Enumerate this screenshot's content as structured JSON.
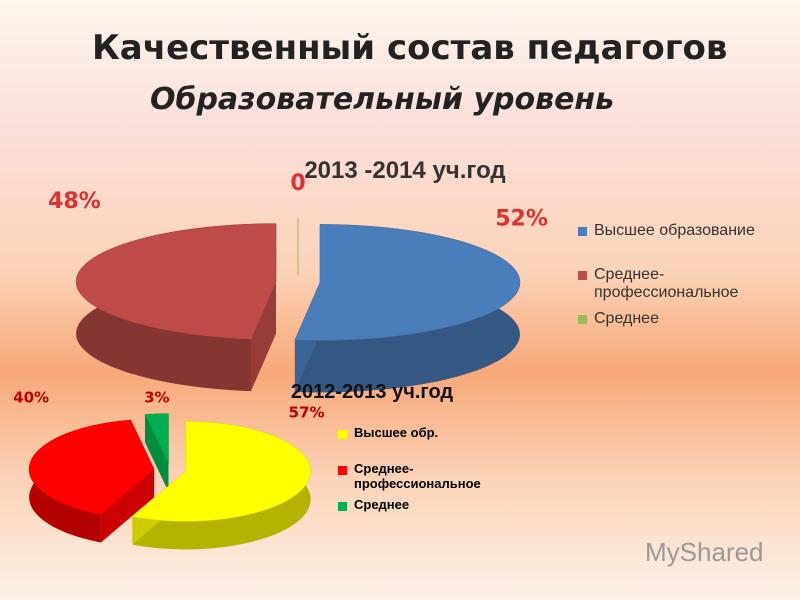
{
  "header": {
    "title": "Качественный состав педагогов",
    "subtitle": "Образовательный уровень"
  },
  "watermark": "MyShared",
  "chart_data": [
    {
      "type": "pie",
      "title": "2013 -2014 уч.год",
      "categories": [
        "Высшее образование",
        "Среднее-профессиональное",
        "Среднее"
      ],
      "values": [
        52,
        48,
        0
      ],
      "value_labels": [
        "52%",
        "48%",
        "0"
      ],
      "colors": [
        "#4a7ebb",
        "#be4b48",
        "#9bbb59"
      ]
    },
    {
      "type": "pie",
      "title": "2012-2013 уч.год",
      "categories": [
        "Высшее обр.",
        "Среднее-профессиональное",
        "Среднее"
      ],
      "values": [
        57,
        40,
        3
      ],
      "value_labels": [
        "57%",
        "40%",
        "3%"
      ],
      "colors": [
        "#ffff00",
        "#ff0000",
        "#00b050"
      ]
    }
  ]
}
